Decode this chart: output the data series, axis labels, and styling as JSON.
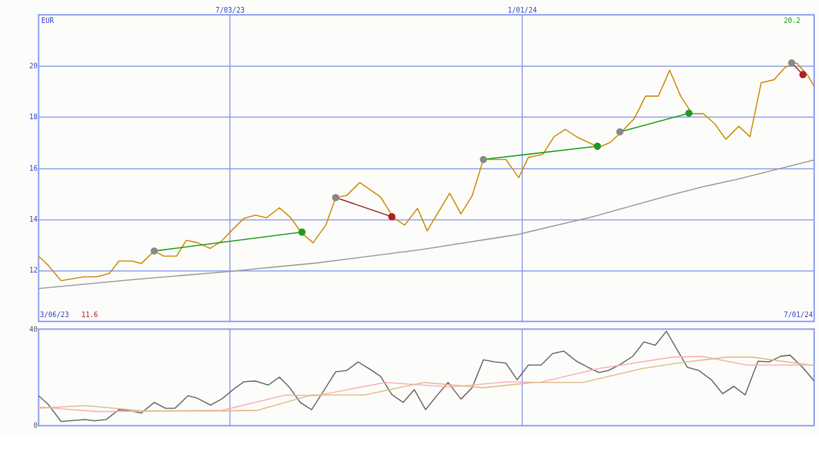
{
  "chart_data": [
    {
      "type": "line",
      "ylabel": "EUR",
      "xlim": [
        "2023-03-06",
        "2024-07-01"
      ],
      "ylim": [
        10,
        22
      ],
      "yticks": [
        12,
        14,
        16,
        18,
        20
      ],
      "xticks": [
        {
          "value": "2023-07-03",
          "label": "7/03/23"
        },
        {
          "value": "2024-01-01",
          "label": "1/01/24"
        }
      ],
      "grid": true,
      "legend": false,
      "annotations": [
        "3/06/23",
        "11.6",
        "7/01/24",
        "20.2"
      ],
      "series": [
        {
          "color": "#cc8800",
          "marker": "none",
          "x": [
            "2023-03-06",
            "2023-03-12",
            "2023-03-20",
            "2023-04-03",
            "2023-04-11",
            "2023-04-19",
            "2023-04-25",
            "2023-05-03",
            "2023-05-09",
            "2023-05-17",
            "2023-05-23",
            "2023-05-31",
            "2023-06-06",
            "2023-06-13",
            "2023-06-21",
            "2023-06-28",
            "2023-07-04",
            "2023-07-12",
            "2023-07-19",
            "2023-07-26",
            "2023-08-03",
            "2023-08-10",
            "2023-08-17",
            "2023-08-24",
            "2023-09-01",
            "2023-09-07",
            "2023-09-14",
            "2023-09-22",
            "2023-10-05",
            "2023-10-13",
            "2023-10-20",
            "2023-10-28",
            "2023-11-03",
            "2023-11-17",
            "2023-11-24",
            "2023-12-01",
            "2023-12-08",
            "2023-12-22",
            "2023-12-30",
            "2024-01-05",
            "2024-01-14",
            "2024-01-21",
            "2024-01-28",
            "2024-02-04",
            "2024-02-18",
            "2024-02-25",
            "2024-03-03",
            "2024-03-11",
            "2024-03-18",
            "2024-03-26",
            "2024-04-02",
            "2024-04-09",
            "2024-04-16",
            "2024-04-23",
            "2024-04-30",
            "2024-05-07",
            "2024-05-15",
            "2024-05-22",
            "2024-05-29",
            "2024-06-06",
            "2024-06-13",
            "2024-06-20",
            "2024-06-27",
            "2024-07-01"
          ],
          "values": [
            12.56,
            12.2,
            11.6,
            11.75,
            11.75,
            11.88,
            12.37,
            12.37,
            12.27,
            12.76,
            12.56,
            12.56,
            13.18,
            13.08,
            12.86,
            13.15,
            13.55,
            14.04,
            14.16,
            14.06,
            14.45,
            14.06,
            13.45,
            13.08,
            13.79,
            14.85,
            14.94,
            15.44,
            14.87,
            14.06,
            13.77,
            14.43,
            13.55,
            15.02,
            14.21,
            14.92,
            16.34,
            16.34,
            15.63,
            16.42,
            16.54,
            17.23,
            17.52,
            17.23,
            16.81,
            17.01,
            17.42,
            17.94,
            18.82,
            18.82,
            19.83,
            18.8,
            18.13,
            18.13,
            17.74,
            17.13,
            17.64,
            17.23,
            19.34,
            19.46,
            19.95,
            20.12,
            19.63,
            19.2
          ]
        },
        {
          "color": "#999999",
          "marker": "none",
          "x": [
            "2023-03-06",
            "2023-05-07",
            "2023-06-28",
            "2023-08-26",
            "2023-10-30",
            "2023-12-29",
            "2024-02-14",
            "2024-04-04",
            "2024-04-24",
            "2024-05-15",
            "2024-07-01"
          ],
          "values": [
            11.29,
            11.66,
            11.93,
            12.29,
            12.81,
            13.4,
            14.1,
            14.97,
            15.29,
            15.58,
            16.32
          ]
        },
        {
          "color": "#119911",
          "marker": "circle",
          "colors": [
            "#888888",
            "#229922"
          ],
          "x": [
            "2023-05-17",
            "2023-08-17"
          ],
          "values": [
            12.76,
            13.5
          ]
        },
        {
          "color": "#992222",
          "marker": "circle",
          "colors": [
            "#888888",
            "#aa2222"
          ],
          "x": [
            "2023-09-07",
            "2023-10-12"
          ],
          "values": [
            14.85,
            14.1
          ]
        },
        {
          "color": "#119911",
          "marker": "circle",
          "colors": [
            "#888888",
            "#229922"
          ],
          "x": [
            "2023-12-08",
            "2024-02-17"
          ],
          "values": [
            16.34,
            16.86
          ]
        },
        {
          "color": "#119911",
          "marker": "circle",
          "colors": [
            "#888888",
            "#229922"
          ],
          "x": [
            "2024-03-02",
            "2024-04-14"
          ],
          "values": [
            17.42,
            18.15
          ]
        },
        {
          "color": "#992222",
          "marker": "circle",
          "colors": [
            "#888888",
            "#aa2222"
          ],
          "x": [
            "2024-06-17",
            "2024-06-24"
          ],
          "values": [
            20.12,
            19.66
          ]
        }
      ]
    },
    {
      "type": "line",
      "xlim": [
        "2023-03-06",
        "2024-07-01"
      ],
      "ylim": [
        0,
        40
      ],
      "yticks": [
        0,
        40
      ],
      "xticks": [
        {
          "value": "2023-07-03",
          "label": null
        },
        {
          "value": "2024-01-01",
          "label": null
        }
      ],
      "grid": "x",
      "legend": false,
      "tick_labels": "y",
      "series": [
        {
          "color": "#666666",
          "marker": "none",
          "x": [
            "2023-03-06",
            "2023-03-12",
            "2023-03-20",
            "2023-04-04",
            "2023-04-10",
            "2023-04-17",
            "2023-04-25",
            "2023-05-02",
            "2023-05-09",
            "2023-05-17",
            "2023-05-24",
            "2023-05-30",
            "2023-06-07",
            "2023-06-13",
            "2023-06-21",
            "2023-06-28",
            "2023-07-06",
            "2023-07-12",
            "2023-07-19",
            "2023-07-27",
            "2023-08-03",
            "2023-08-09",
            "2023-08-16",
            "2023-08-23",
            "2023-08-31",
            "2023-09-07",
            "2023-09-14",
            "2023-09-21",
            "2023-09-29",
            "2023-10-05",
            "2023-10-12",
            "2023-10-19",
            "2023-10-26",
            "2023-11-02",
            "2023-11-09",
            "2023-11-16",
            "2023-11-24",
            "2023-12-01",
            "2023-12-08",
            "2023-12-15",
            "2023-12-22",
            "2023-12-29",
            "2024-01-05",
            "2024-01-13",
            "2024-01-20",
            "2024-01-27",
            "2024-02-04",
            "2024-02-11",
            "2024-02-18",
            "2024-02-24",
            "2024-03-02",
            "2024-03-10",
            "2024-03-17",
            "2024-03-24",
            "2024-03-31",
            "2024-04-07",
            "2024-04-13",
            "2024-04-20",
            "2024-04-28",
            "2024-05-05",
            "2024-05-12",
            "2024-05-19",
            "2024-05-27",
            "2024-06-03",
            "2024-06-10",
            "2024-06-16",
            "2024-06-24",
            "2024-07-01"
          ],
          "values": [
            12.4,
            8.8,
            1.7,
            2.5,
            2.0,
            2.5,
            6.6,
            6.1,
            5.2,
            9.6,
            7.2,
            7.2,
            12.4,
            11.3,
            8.5,
            11.0,
            15.4,
            18.2,
            18.5,
            16.8,
            20.1,
            16.0,
            9.6,
            6.6,
            14.9,
            22.3,
            22.9,
            26.4,
            23.1,
            20.4,
            12.9,
            9.6,
            14.9,
            6.6,
            12.4,
            17.9,
            11.0,
            15.7,
            27.3,
            26.4,
            25.9,
            19.0,
            25.1,
            25.1,
            29.8,
            30.9,
            26.7,
            24.2,
            22.0,
            22.9,
            25.3,
            28.7,
            34.7,
            33.3,
            39.1,
            31.1,
            24.2,
            22.9,
            19.0,
            13.2,
            16.3,
            12.7,
            26.7,
            26.4,
            28.7,
            29.2,
            24.0,
            18.5
          ]
        },
        {
          "color": "#ffaabb",
          "marker": "none",
          "x": [
            "2023-03-06",
            "2023-04-12",
            "2023-06-28",
            "2023-08-07",
            "2023-08-26",
            "2023-10-08",
            "2023-11-17",
            "2023-12-24",
            "2024-01-12",
            "2024-02-18",
            "2024-04-04",
            "2024-04-22",
            "2024-05-20",
            "2024-07-01"
          ],
          "values": [
            7.7,
            5.8,
            6.3,
            12.7,
            12.4,
            17.9,
            16.0,
            18.2,
            17.9,
            23.7,
            28.4,
            28.7,
            25.1,
            25.1
          ]
        },
        {
          "color": "#ddbb88",
          "marker": "none",
          "x": [
            "2023-03-06",
            "2023-04-04",
            "2023-05-10",
            "2023-06-28",
            "2023-07-20",
            "2023-08-23",
            "2023-09-25",
            "2023-11-01",
            "2023-12-08",
            "2024-01-08",
            "2024-02-08",
            "2024-03-16",
            "2024-04-10",
            "2024-05-08",
            "2024-05-23",
            "2024-07-01"
          ],
          "values": [
            7.2,
            8.3,
            6.1,
            6.1,
            6.3,
            12.7,
            12.7,
            17.9,
            15.7,
            17.9,
            17.9,
            23.7,
            26.2,
            28.4,
            28.4,
            24.9
          ]
        }
      ]
    }
  ]
}
